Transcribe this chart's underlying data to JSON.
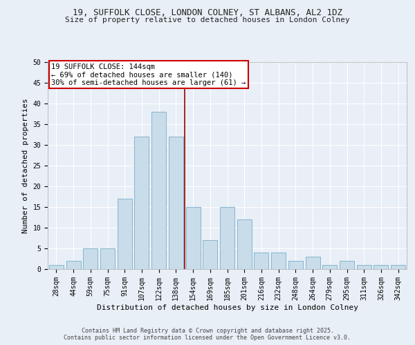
{
  "title_line1": "19, SUFFOLK CLOSE, LONDON COLNEY, ST ALBANS, AL2 1DZ",
  "title_line2": "Size of property relative to detached houses in London Colney",
  "xlabel": "Distribution of detached houses by size in London Colney",
  "ylabel": "Number of detached properties",
  "categories": [
    "28sqm",
    "44sqm",
    "59sqm",
    "75sqm",
    "91sqm",
    "107sqm",
    "122sqm",
    "138sqm",
    "154sqm",
    "169sqm",
    "185sqm",
    "201sqm",
    "216sqm",
    "232sqm",
    "248sqm",
    "264sqm",
    "279sqm",
    "295sqm",
    "311sqm",
    "326sqm",
    "342sqm"
  ],
  "values": [
    1,
    2,
    5,
    5,
    17,
    32,
    38,
    32,
    15,
    7,
    15,
    12,
    4,
    4,
    2,
    3,
    1,
    2,
    1,
    1,
    1
  ],
  "bar_color": "#c8dcea",
  "bar_edge_color": "#7aacc8",
  "bar_edge_width": 0.6,
  "vline_pos": 7.5,
  "vline_color": "#990000",
  "annotation_title": "19 SUFFOLK CLOSE: 144sqm",
  "annotation_line2": "← 69% of detached houses are smaller (140)",
  "annotation_line3": "30% of semi-detached houses are larger (61) →",
  "annotation_box_color": "#cc0000",
  "annotation_fill": "#ffffff",
  "ylim": [
    0,
    50
  ],
  "yticks": [
    0,
    5,
    10,
    15,
    20,
    25,
    30,
    35,
    40,
    45,
    50
  ],
  "background_color": "#e8eff6",
  "plot_background": "#e8eff6",
  "grid_color": "#ffffff",
  "footer_line1": "Contains HM Land Registry data © Crown copyright and database right 2025.",
  "footer_line2": "Contains public sector information licensed under the Open Government Licence v3.0.",
  "title_fontsize": 9,
  "subtitle_fontsize": 8,
  "axis_label_fontsize": 8,
  "tick_fontsize": 7,
  "annotation_fontsize": 7.5,
  "footer_fontsize": 6
}
